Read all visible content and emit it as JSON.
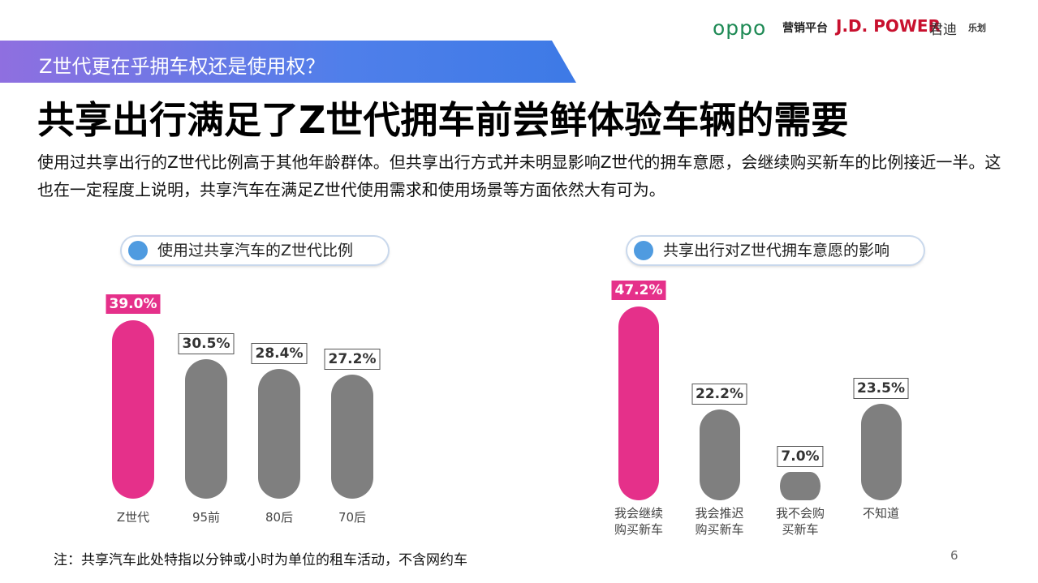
{
  "logos": {
    "oppo": "oppo",
    "platform": "营销平台",
    "jdpower": "J.D. POWER",
    "jundi": "君迪",
    "lehua": "乐划"
  },
  "header": {
    "banner": "Z世代更在乎拥车权还是使用权？",
    "title": "共享出行满足了Z世代拥车前尝鲜体验车辆的需要",
    "body": "使用过共享出行的Z世代比例高于其他年龄群体。但共享出行方式并未明显影响Z世代的拥车意愿，会继续购买新车的比例接近一半。这也在一定程度上说明，共享汽车在满足Z世代使用需求和使用场景等方面依然大有可为。"
  },
  "chart_data": [
    {
      "type": "bar",
      "title": "使用过共享汽车的Z世代比例",
      "categories": [
        "Z世代",
        "95前",
        "80后",
        "70后"
      ],
      "values": [
        39.0,
        30.5,
        28.4,
        27.2
      ],
      "value_labels": [
        "39.0%",
        "30.5%",
        "28.4%",
        "27.2%"
      ],
      "colors": [
        "#e5308a",
        "#7f7f7f",
        "#7f7f7f",
        "#7f7f7f"
      ]
    },
    {
      "type": "bar",
      "title": "共享出行对Z世代拥车意愿的影响",
      "categories": [
        "我会继续购买新车",
        "我会推迟购买新车",
        "我不会购买新车",
        "不知道"
      ],
      "values": [
        47.2,
        22.2,
        7.0,
        23.5
      ],
      "value_labels": [
        "47.2%",
        "22.2%",
        "7.0%",
        "23.5%"
      ],
      "colors": [
        "#e5308a",
        "#7f7f7f",
        "#7f7f7f",
        "#7f7f7f"
      ]
    }
  ],
  "footnote": "注：共享汽车此处特指以分钟或小时为单位的租车活动，不含网约车",
  "page_number": "6"
}
